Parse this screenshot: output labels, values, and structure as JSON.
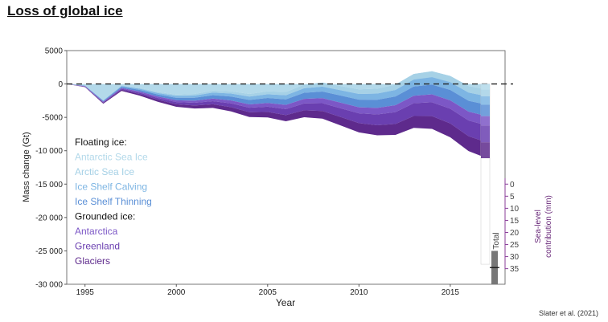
{
  "title": "Loss of global ice",
  "source": "Slater et al. (2021)",
  "chart_data": {
    "type": "area",
    "title": "Loss of global ice",
    "xlabel": "Year",
    "ylabel": "Mass change (Gt)",
    "xlim": [
      1994,
      2018
    ],
    "ylim": [
      -30000,
      5000
    ],
    "xticks": [
      1995,
      2000,
      2005,
      2010,
      2015
    ],
    "yticks": [
      5000,
      0,
      -5000,
      -10000,
      -15000,
      -20000,
      -25000,
      -30000
    ],
    "ytick_labels": [
      "5000",
      "0",
      "-5000",
      "-10 000",
      "-15 000",
      "-20 000",
      "-25 000",
      "-30 000"
    ],
    "x": [
      1994,
      1995,
      1996,
      1997,
      1998,
      1999,
      2000,
      2001,
      2002,
      2003,
      2004,
      2005,
      2006,
      2007,
      2008,
      2009,
      2010,
      2011,
      2012,
      2013,
      2014,
      2015,
      2016,
      2017
    ],
    "legend": {
      "floating_heading": "Floating ice:",
      "grounded_heading": "Grounded ice:",
      "placement": "left"
    },
    "series": [
      {
        "name": "Antarctic Sea Ice",
        "group": "floating",
        "color": "#b3d9ea",
        "values": [
          0,
          -200,
          -2400,
          -200,
          -600,
          -1200,
          -1600,
          -1500,
          -1000,
          -1100,
          -1500,
          -1100,
          -1200,
          -100,
          200,
          -300,
          -800,
          -700,
          -100,
          1500,
          1900,
          1200,
          -300,
          -800
        ]
      },
      {
        "name": "Arctic Sea Ice",
        "group": "floating",
        "color": "#a6d1e6",
        "values": [
          0,
          -30,
          -60,
          -90,
          -120,
          -160,
          -200,
          -240,
          -290,
          -340,
          -390,
          -440,
          -490,
          -540,
          -590,
          -640,
          -690,
          -740,
          -790,
          -840,
          -890,
          -940,
          -990,
          -1040
        ]
      },
      {
        "name": "Ice Shelf Calving",
        "group": "floating",
        "color": "#7db5e3",
        "values": [
          0,
          -30,
          -80,
          -120,
          -180,
          -230,
          -280,
          -330,
          -390,
          -440,
          -500,
          -560,
          -620,
          -680,
          -740,
          -800,
          -860,
          -920,
          -980,
          -1040,
          -1100,
          -1160,
          -1220,
          -1280
        ]
      },
      {
        "name": "Ice Shelf Thinning",
        "group": "floating",
        "color": "#5a8fd6",
        "values": [
          0,
          -60,
          -120,
          -180,
          -240,
          -300,
          -360,
          -430,
          -510,
          -590,
          -670,
          -750,
          -830,
          -910,
          -990,
          -1070,
          -1150,
          -1230,
          -1310,
          -1390,
          -1470,
          -1550,
          -1630,
          -1700
        ]
      },
      {
        "name": "Antarctica",
        "group": "grounded",
        "color": "#7c57c6",
        "values": [
          0,
          -40,
          -80,
          -120,
          -170,
          -220,
          -270,
          -320,
          -380,
          -440,
          -500,
          -560,
          -620,
          -690,
          -760,
          -830,
          -900,
          -970,
          -1040,
          -1110,
          -1180,
          -1250,
          -1320,
          -1400
        ]
      },
      {
        "name": "Greenland",
        "group": "grounded",
        "color": "#6a3fb0",
        "values": [
          0,
          -50,
          -100,
          -150,
          -200,
          -260,
          -330,
          -400,
          -480,
          -570,
          -670,
          -780,
          -900,
          -1030,
          -1170,
          -1320,
          -1470,
          -1620,
          -1770,
          -1920,
          -2070,
          -2220,
          -2370,
          -2520
        ]
      },
      {
        "name": "Glaciers",
        "group": "grounded",
        "color": "#5e2a8c",
        "values": [
          0,
          -60,
          -120,
          -180,
          -240,
          -310,
          -380,
          -460,
          -540,
          -630,
          -720,
          -820,
          -920,
          -1030,
          -1140,
          -1260,
          -1380,
          -1510,
          -1640,
          -1780,
          -1920,
          -2070,
          -2220,
          -2380
        ]
      }
    ],
    "total_label": "Total",
    "sea_level": {
      "label_line1": "Sea-level",
      "label_line2": "contribution (mm)",
      "ticks": [
        "0",
        "5",
        "10",
        "15",
        "20",
        "25",
        "30",
        "35"
      ],
      "tick_values": [
        0,
        5,
        10,
        15,
        20,
        25,
        30,
        35
      ],
      "zero_at_gt": -15000,
      "gt_per_mm": 362
    },
    "grid": false,
    "zero_line": "dashed"
  }
}
